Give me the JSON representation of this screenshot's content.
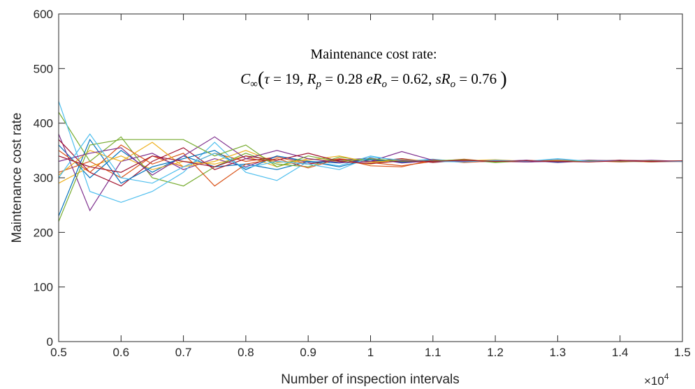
{
  "chart_data": {
    "type": "line",
    "xlabel": "Number of inspection intervals",
    "ylabel": "Maintenance cost rate",
    "x_multiplier_label": "×10",
    "x_multiplier_exp": "4",
    "xlim": [
      0.5,
      1.5
    ],
    "ylim": [
      0,
      600
    ],
    "x_ticks": [
      "0.5",
      "0.6",
      "0.7",
      "0.8",
      "0.9",
      "1",
      "1.1",
      "1.2",
      "1.3",
      "1.4",
      "1.5"
    ],
    "y_ticks": [
      "0",
      "100",
      "200",
      "300",
      "400",
      "500",
      "600"
    ],
    "grid": false,
    "annotation": {
      "line1": "Maintenance cost rate:",
      "c": "C",
      "c_sub": "∞",
      "open": "(",
      "tau": "τ",
      "eq19": " = 19, ",
      "r": "R",
      "r_sub": "p",
      "eq028": " = 0.28 ",
      "er": "eR",
      "er_sub": "o",
      "eq062": " = 0.62, ",
      "sr": "sR",
      "sr_sub": "o",
      "eq076": " = 0.76 ",
      "close": ")"
    },
    "x": [
      0.5,
      0.55,
      0.6,
      0.65,
      0.7,
      0.75,
      0.8,
      0.85,
      0.9,
      0.95,
      1.0,
      1.05,
      1.1,
      1.15,
      1.2,
      1.25,
      1.3,
      1.35,
      1.4,
      1.45,
      1.5
    ],
    "series": [
      {
        "color": "#0072BD",
        "values": [
          360,
          300,
          350,
          310,
          340,
          320,
          325,
          315,
          330,
          320,
          335,
          328,
          333,
          330,
          332,
          329,
          331,
          330,
          332,
          331,
          330
        ]
      },
      {
        "color": "#D95319",
        "values": [
          310,
          330,
          300,
          340,
          320,
          345,
          330,
          338,
          325,
          335,
          328,
          322,
          330,
          334,
          329,
          332,
          330,
          331,
          329,
          331,
          330
        ]
      },
      {
        "color": "#EDB120",
        "values": [
          290,
          320,
          340,
          315,
          330,
          325,
          340,
          320,
          335,
          330,
          325,
          335,
          329,
          331,
          333,
          330,
          332,
          329,
          331,
          330,
          331
        ]
      },
      {
        "color": "#7E2F8E",
        "values": [
          380,
          240,
          330,
          345,
          315,
          335,
          320,
          340,
          328,
          332,
          336,
          327,
          331,
          329,
          330,
          332,
          328,
          331,
          330,
          332,
          330
        ]
      },
      {
        "color": "#77AC30",
        "values": [
          420,
          330,
          375,
          300,
          285,
          320,
          345,
          325,
          320,
          338,
          330,
          332,
          330,
          333,
          328,
          331,
          330,
          332,
          331,
          329,
          331
        ]
      },
      {
        "color": "#4DBEEE",
        "values": [
          440,
          275,
          255,
          275,
          310,
          365,
          310,
          295,
          330,
          322,
          340,
          330,
          334,
          329,
          331,
          330,
          333,
          330,
          331,
          330,
          330
        ]
      },
      {
        "color": "#A2142F",
        "values": [
          370,
          310,
          285,
          330,
          355,
          315,
          335,
          330,
          325,
          333,
          330,
          335,
          328,
          332,
          330,
          329,
          331,
          330,
          332,
          331,
          330
        ]
      },
      {
        "color": "#0072BD",
        "values": [
          230,
          370,
          290,
          320,
          335,
          350,
          315,
          340,
          330,
          327,
          333,
          329,
          332,
          330,
          330,
          331,
          329,
          331,
          330,
          330,
          331
        ]
      },
      {
        "color": "#D95319",
        "values": [
          350,
          310,
          360,
          325,
          345,
          285,
          325,
          335,
          318,
          335,
          322,
          320,
          333,
          328,
          331,
          330,
          332,
          330,
          331,
          329,
          330
        ]
      },
      {
        "color": "#EDB120",
        "values": [
          305,
          350,
          330,
          365,
          320,
          330,
          350,
          328,
          332,
          340,
          328,
          333,
          330,
          331,
          332,
          330,
          331,
          331,
          330,
          330,
          331
        ]
      },
      {
        "color": "#7E2F8E",
        "values": [
          330,
          345,
          355,
          305,
          340,
          375,
          335,
          350,
          335,
          328,
          330,
          348,
          332,
          330,
          331,
          329,
          330,
          332,
          331,
          330,
          330
        ]
      },
      {
        "color": "#77AC30",
        "values": [
          220,
          360,
          370,
          370,
          370,
          340,
          360,
          320,
          340,
          330,
          335,
          330,
          331,
          333,
          329,
          331,
          330,
          331,
          330,
          331,
          330
        ]
      },
      {
        "color": "#4DBEEE",
        "values": [
          300,
          380,
          300,
          290,
          320,
          345,
          318,
          330,
          325,
          315,
          338,
          332,
          330,
          329,
          332,
          330,
          335,
          330,
          331,
          330,
          330
        ]
      },
      {
        "color": "#A2142F",
        "values": [
          340,
          320,
          310,
          340,
          330,
          320,
          340,
          332,
          345,
          330,
          326,
          331,
          330,
          332,
          330,
          331,
          330,
          329,
          331,
          330,
          331
        ]
      }
    ]
  }
}
